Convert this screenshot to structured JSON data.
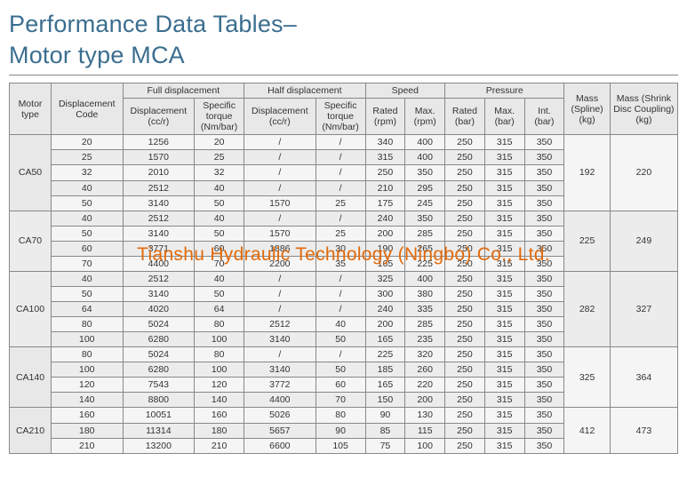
{
  "title_line1": "Performance Data Tables–",
  "title_line2": "Motor type MCA",
  "watermark": "Tianshu Hydraulic Technology (Ningbo) Co., Ltd.",
  "headers": {
    "motor_type": "Motor type",
    "disp_code": "Displacement Code",
    "full_disp": "Full displacement",
    "half_disp": "Half displacement",
    "speed": "Speed",
    "pressure": "Pressure",
    "mass_spline": "Mass (Spline) (kg)",
    "mass_shrink": "Mass (Shrink Disc Coupling) (kg)",
    "disp_ccr": "Displacement (cc/r)",
    "spec_torque": "Specific torque (Nm/bar)",
    "rated_rpm": "Rated (rpm)",
    "max_rpm": "Max. (rpm)",
    "rated_bar": "Rated (bar)",
    "max_bar": "Max. (bar)",
    "int_bar": "Int. (bar)"
  },
  "groups": [
    {
      "motor": "CA50",
      "mass_spline": "192",
      "mass_shrink": "220",
      "rows": [
        {
          "code": "20",
          "fd": "1256",
          "ft": "20",
          "hd": "/",
          "ht": "/",
          "rr": "340",
          "mr": "400",
          "rb": "250",
          "mb": "315",
          "ib": "350"
        },
        {
          "code": "25",
          "fd": "1570",
          "ft": "25",
          "hd": "/",
          "ht": "/",
          "rr": "315",
          "mr": "400",
          "rb": "250",
          "mb": "315",
          "ib": "350"
        },
        {
          "code": "32",
          "fd": "2010",
          "ft": "32",
          "hd": "/",
          "ht": "/",
          "rr": "250",
          "mr": "350",
          "rb": "250",
          "mb": "315",
          "ib": "350"
        },
        {
          "code": "40",
          "fd": "2512",
          "ft": "40",
          "hd": "/",
          "ht": "/",
          "rr": "210",
          "mr": "295",
          "rb": "250",
          "mb": "315",
          "ib": "350"
        },
        {
          "code": "50",
          "fd": "3140",
          "ft": "50",
          "hd": "1570",
          "ht": "25",
          "rr": "175",
          "mr": "245",
          "rb": "250",
          "mb": "315",
          "ib": "350"
        }
      ]
    },
    {
      "motor": "CA70",
      "mass_spline": "225",
      "mass_shrink": "249",
      "rows": [
        {
          "code": "40",
          "fd": "2512",
          "ft": "40",
          "hd": "/",
          "ht": "/",
          "rr": "240",
          "mr": "350",
          "rb": "250",
          "mb": "315",
          "ib": "350"
        },
        {
          "code": "50",
          "fd": "3140",
          "ft": "50",
          "hd": "1570",
          "ht": "25",
          "rr": "200",
          "mr": "285",
          "rb": "250",
          "mb": "315",
          "ib": "350"
        },
        {
          "code": "60",
          "fd": "3771",
          "ft": "60",
          "hd": "1886",
          "ht": "30",
          "rr": "190",
          "mr": "265",
          "rb": "250",
          "mb": "315",
          "ib": "350"
        },
        {
          "code": "70",
          "fd": "4400",
          "ft": "70",
          "hd": "2200",
          "ht": "35",
          "rr": "165",
          "mr": "225",
          "rb": "250",
          "mb": "315",
          "ib": "350"
        }
      ]
    },
    {
      "motor": "CA100",
      "mass_spline": "282",
      "mass_shrink": "327",
      "rows": [
        {
          "code": "40",
          "fd": "2512",
          "ft": "40",
          "hd": "/",
          "ht": "/",
          "rr": "325",
          "mr": "400",
          "rb": "250",
          "mb": "315",
          "ib": "350"
        },
        {
          "code": "50",
          "fd": "3140",
          "ft": "50",
          "hd": "/",
          "ht": "/",
          "rr": "300",
          "mr": "380",
          "rb": "250",
          "mb": "315",
          "ib": "350"
        },
        {
          "code": "64",
          "fd": "4020",
          "ft": "64",
          "hd": "/",
          "ht": "/",
          "rr": "240",
          "mr": "335",
          "rb": "250",
          "mb": "315",
          "ib": "350"
        },
        {
          "code": "80",
          "fd": "5024",
          "ft": "80",
          "hd": "2512",
          "ht": "40",
          "rr": "200",
          "mr": "285",
          "rb": "250",
          "mb": "315",
          "ib": "350"
        },
        {
          "code": "100",
          "fd": "6280",
          "ft": "100",
          "hd": "3140",
          "ht": "50",
          "rr": "165",
          "mr": "235",
          "rb": "250",
          "mb": "315",
          "ib": "350"
        }
      ]
    },
    {
      "motor": "CA140",
      "mass_spline": "325",
      "mass_shrink": "364",
      "rows": [
        {
          "code": "80",
          "fd": "5024",
          "ft": "80",
          "hd": "/",
          "ht": "/",
          "rr": "225",
          "mr": "320",
          "rb": "250",
          "mb": "315",
          "ib": "350"
        },
        {
          "code": "100",
          "fd": "6280",
          "ft": "100",
          "hd": "3140",
          "ht": "50",
          "rr": "185",
          "mr": "260",
          "rb": "250",
          "mb": "315",
          "ib": "350"
        },
        {
          "code": "120",
          "fd": "7543",
          "ft": "120",
          "hd": "3772",
          "ht": "60",
          "rr": "165",
          "mr": "220",
          "rb": "250",
          "mb": "315",
          "ib": "350"
        },
        {
          "code": "140",
          "fd": "8800",
          "ft": "140",
          "hd": "4400",
          "ht": "70",
          "rr": "150",
          "mr": "200",
          "rb": "250",
          "mb": "315",
          "ib": "350"
        }
      ]
    },
    {
      "motor": "CA210",
      "mass_spline": "412",
      "mass_shrink": "473",
      "rows": [
        {
          "code": "160",
          "fd": "10051",
          "ft": "160",
          "hd": "5026",
          "ht": "80",
          "rr": "90",
          "mr": "130",
          "rb": "250",
          "mb": "315",
          "ib": "350"
        },
        {
          "code": "180",
          "fd": "11314",
          "ft": "180",
          "hd": "5657",
          "ht": "90",
          "rr": "85",
          "mr": "115",
          "rb": "250",
          "mb": "315",
          "ib": "350"
        },
        {
          "code": "210",
          "fd": "13200",
          "ft": "210",
          "hd": "6600",
          "ht": "105",
          "rr": "75",
          "mr": "100",
          "rb": "250",
          "mb": "315",
          "ib": "350"
        }
      ]
    }
  ],
  "colors": {
    "title": "#3b6e8f",
    "border": "#888888",
    "header_bg": "#e8e8e8",
    "cell_bg": "#f5f5f5",
    "alt_bg": "#ececec",
    "watermark": "#e26a0a"
  }
}
